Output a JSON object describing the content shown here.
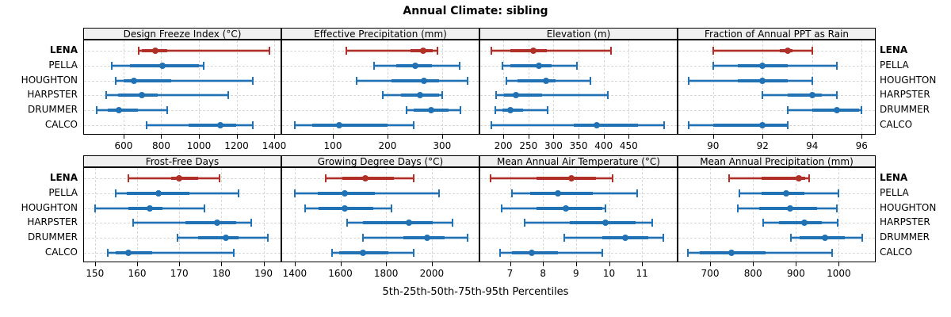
{
  "title": "Annual Climate: sibling",
  "caption": "5th-25th-50th-75th-95th Percentiles",
  "sites": [
    "LENA",
    "PELLA",
    "HOUGHTON",
    "HARPSTER",
    "DRUMMER",
    "CALCO"
  ],
  "highlight_site": "LENA",
  "percentiles_shown": [
    "5th",
    "25th",
    "50th",
    "75th",
    "95th"
  ],
  "colors": {
    "series": "#2171B5",
    "series_band": "rgba(33,113,181,0.32)",
    "highlight": "#B03028",
    "highlight_band": "rgba(176,48,40,0.30)",
    "grid": "#D8D8D8",
    "strip_bg": "#F0F0F0",
    "panel_border": "#000000"
  },
  "chart_data": [
    {
      "type": "percentile-range",
      "title": "Design Freeze Index (°C)",
      "grid_pos": {
        "row": 0,
        "col": 0
      },
      "xlim": [
        390,
        1442
      ],
      "ticks": [
        600,
        800,
        1000,
        1200,
        1400
      ],
      "series": [
        {
          "name": "LENA",
          "values": [
            680,
            695,
            770,
            830,
            1375
          ]
        },
        {
          "name": "PELLA",
          "values": [
            535,
            635,
            805,
            1000,
            1025
          ]
        },
        {
          "name": "HOUGHTON",
          "values": [
            558,
            600,
            655,
            855,
            1285
          ]
        },
        {
          "name": "HARPSTER",
          "values": [
            508,
            570,
            697,
            780,
            1155
          ]
        },
        {
          "name": "DRUMMER",
          "values": [
            457,
            515,
            575,
            675,
            830
          ]
        },
        {
          "name": "CALCO",
          "values": [
            723,
            945,
            1115,
            1200,
            1285
          ]
        }
      ]
    },
    {
      "type": "percentile-range",
      "title": "Effective Precipitation (mm)",
      "grid_pos": {
        "row": 0,
        "col": 1
      },
      "xlim": [
        7,
        370
      ],
      "ticks": [
        100,
        200,
        300
      ],
      "series": [
        {
          "name": "LENA",
          "values": [
            125,
            242,
            265,
            283,
            292
          ]
        },
        {
          "name": "PELLA",
          "values": [
            175,
            216,
            251,
            281,
            332
          ]
        },
        {
          "name": "HOUGHTON",
          "values": [
            143,
            207,
            267,
            294,
            346
          ]
        },
        {
          "name": "HARPSTER",
          "values": [
            192,
            225,
            259,
            294,
            300
          ]
        },
        {
          "name": "DRUMMER",
          "values": [
            235,
            248,
            280,
            312,
            333
          ]
        },
        {
          "name": "CALCO",
          "values": [
            30,
            62,
            112,
            200,
            248
          ]
        }
      ]
    },
    {
      "type": "percentile-range",
      "title": "Elevation (m)",
      "grid_pos": {
        "row": 0,
        "col": 2
      },
      "xlim": [
        154,
        549
      ],
      "ticks": [
        200,
        250,
        300,
        350,
        400,
        450
      ],
      "series": [
        {
          "name": "LENA",
          "values": [
            176,
            214,
            259,
            287,
            415
          ]
        },
        {
          "name": "PELLA",
          "values": [
            198,
            214,
            271,
            296,
            347
          ]
        },
        {
          "name": "HOUGHTON",
          "values": [
            206,
            228,
            285,
            304,
            373
          ]
        },
        {
          "name": "HARPSTER",
          "values": [
            186,
            202,
            225,
            277,
            409
          ]
        },
        {
          "name": "DRUMMER",
          "values": [
            184,
            198,
            214,
            240,
            288
          ]
        },
        {
          "name": "CALCO",
          "values": [
            176,
            340,
            386,
            468,
            520
          ]
        }
      ]
    },
    {
      "type": "percentile-range",
      "title": "Fraction of Annual PPT as Rain",
      "grid_pos": {
        "row": 0,
        "col": 3
      },
      "xlim": [
        88.6,
        96.6
      ],
      "ticks": [
        90,
        92,
        94,
        96
      ],
      "series": [
        {
          "name": "LENA",
          "values": [
            90,
            92.7,
            93,
            93.2,
            94
          ]
        },
        {
          "name": "PELLA",
          "values": [
            90,
            91,
            92,
            93,
            95
          ]
        },
        {
          "name": "HOUGHTON",
          "values": [
            89,
            91,
            92,
            93,
            94
          ]
        },
        {
          "name": "HARPSTER",
          "values": [
            92,
            93,
            94,
            94.4,
            95
          ]
        },
        {
          "name": "DRUMMER",
          "values": [
            93,
            94,
            95,
            95.9,
            96
          ]
        },
        {
          "name": "CALCO",
          "values": [
            89,
            90,
            92,
            93,
            93
          ]
        }
      ]
    },
    {
      "type": "percentile-range",
      "title": "Frost-Free Days",
      "grid_pos": {
        "row": 1,
        "col": 0
      },
      "xlim": [
        147.4,
        194.4
      ],
      "ticks": [
        150,
        160,
        170,
        180,
        190
      ],
      "series": [
        {
          "name": "LENA",
          "values": [
            158,
            168,
            170,
            174.5,
            179.5
          ]
        },
        {
          "name": "PELLA",
          "values": [
            155,
            157.5,
            165,
            172.5,
            184
          ]
        },
        {
          "name": "HOUGHTON",
          "values": [
            150,
            158,
            163,
            166,
            176
          ]
        },
        {
          "name": "HARPSTER",
          "values": [
            159,
            171.5,
            179,
            183.5,
            187
          ]
        },
        {
          "name": "DRUMMER",
          "values": [
            169.5,
            174.5,
            181,
            184,
            191
          ]
        },
        {
          "name": "CALCO",
          "values": [
            153,
            155,
            158,
            163.5,
            183
          ]
        }
      ]
    },
    {
      "type": "percentile-range",
      "title": "Growing Degree Days (°C)",
      "grid_pos": {
        "row": 1,
        "col": 1
      },
      "xlim": [
        1345,
        2212
      ],
      "ticks": [
        1400,
        1600,
        1800,
        2000
      ],
      "series": [
        {
          "name": "LENA",
          "values": [
            1535,
            1610,
            1710,
            1835,
            1920
          ]
        },
        {
          "name": "PELLA",
          "values": [
            1400,
            1500,
            1620,
            1750,
            2030
          ]
        },
        {
          "name": "HOUGHTON",
          "values": [
            1445,
            1505,
            1620,
            1745,
            1825
          ]
        },
        {
          "name": "HARPSTER",
          "values": [
            1630,
            1700,
            1900,
            2005,
            2090
          ]
        },
        {
          "name": "DRUMMER",
          "values": [
            1700,
            1875,
            1980,
            2055,
            2155
          ]
        },
        {
          "name": "CALCO",
          "values": [
            1565,
            1595,
            1700,
            1810,
            1920
          ]
        }
      ]
    },
    {
      "type": "percentile-range",
      "title": "Mean Annual Air Temperature (°C)",
      "grid_pos": {
        "row": 1,
        "col": 2
      },
      "xlim": [
        6.1,
        12.1
      ],
      "ticks": [
        7,
        8,
        9,
        10,
        11
      ],
      "series": [
        {
          "name": "LENA",
          "values": [
            6.4,
            7.8,
            8.85,
            9.6,
            10.1
          ]
        },
        {
          "name": "PELLA",
          "values": [
            7.05,
            7.6,
            8.45,
            9.5,
            10.85
          ]
        },
        {
          "name": "HOUGHTON",
          "values": [
            6.75,
            7.8,
            8.7,
            9.8,
            9.9
          ]
        },
        {
          "name": "HARPSTER",
          "values": [
            7.45,
            8.8,
            9.9,
            10.8,
            11.3
          ]
        },
        {
          "name": "DRUMMER",
          "values": [
            8.65,
            9.8,
            10.5,
            11.2,
            11.65
          ]
        },
        {
          "name": "CALCO",
          "values": [
            6.7,
            7.05,
            7.65,
            8.45,
            9.8
          ]
        }
      ]
    },
    {
      "type": "percentile-range",
      "title": "Mean Annual Precipitation (mm)",
      "grid_pos": {
        "row": 1,
        "col": 3
      },
      "xlim": [
        626,
        1088
      ],
      "ticks": [
        700,
        800,
        900,
        1000
      ],
      "series": [
        {
          "name": "LENA",
          "values": [
            745,
            820,
            906,
            922,
            931
          ]
        },
        {
          "name": "PELLA",
          "values": [
            768,
            820,
            878,
            920,
            1000
          ]
        },
        {
          "name": "HOUGHTON",
          "values": [
            765,
            814,
            886,
            950,
            995
          ]
        },
        {
          "name": "HARPSTER",
          "values": [
            823,
            860,
            920,
            960,
            998
          ]
        },
        {
          "name": "DRUMMER",
          "values": [
            888,
            909,
            968,
            1015,
            1054
          ]
        },
        {
          "name": "CALCO",
          "values": [
            648,
            675,
            750,
            830,
            985
          ]
        }
      ]
    }
  ]
}
